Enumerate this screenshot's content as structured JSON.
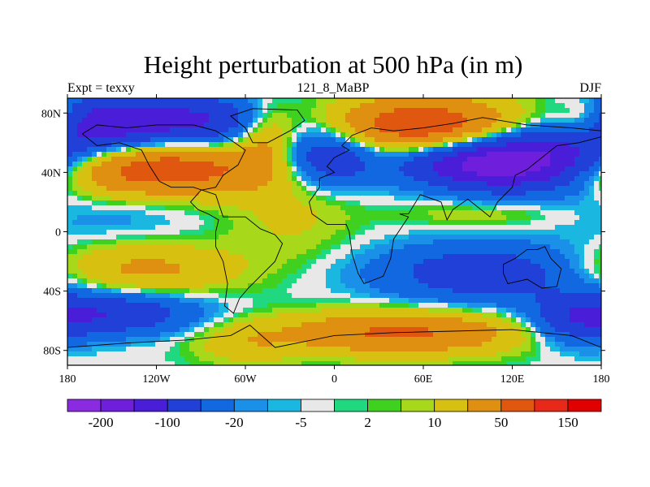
{
  "chart_data": {
    "type": "heatmap",
    "title": "Height perturbation at 500 hPa (in m)",
    "left_label": "Expt = texxy",
    "center_label": "121_8_MaBP",
    "right_label": "DJF",
    "x_ticks": [
      {
        "value": -180,
        "label": "180"
      },
      {
        "value": -120,
        "label": "120W"
      },
      {
        "value": -60,
        "label": "60W"
      },
      {
        "value": 0,
        "label": "0"
      },
      {
        "value": 60,
        "label": "60E"
      },
      {
        "value": 120,
        "label": "120E"
      },
      {
        "value": 180,
        "label": "180"
      }
    ],
    "y_ticks": [
      {
        "value": 80,
        "label": "80N"
      },
      {
        "value": 40,
        "label": "40N"
      },
      {
        "value": 0,
        "label": "0"
      },
      {
        "value": -40,
        "label": "40S"
      },
      {
        "value": -80,
        "label": "80S"
      }
    ],
    "xlim": [
      -180,
      180
    ],
    "ylim": [
      -90,
      90
    ],
    "colorbar": {
      "colors": [
        "#8a2be2",
        "#6f1fdc",
        "#4a1ed8",
        "#2040d8",
        "#1268e0",
        "#1a90e8",
        "#1ab8e0",
        "#e8e8e8",
        "#20d880",
        "#40d020",
        "#a8d81a",
        "#d8c010",
        "#e09010",
        "#e05810",
        "#e82818",
        "#e00000"
      ],
      "labels": [
        {
          "boundary": 1,
          "text": "-200"
        },
        {
          "boundary": 3,
          "text": "-100"
        },
        {
          "boundary": 5,
          "text": "-20"
        },
        {
          "boundary": 7,
          "text": "-5"
        },
        {
          "boundary": 9,
          "text": "2"
        },
        {
          "boundary": 11,
          "text": "10"
        },
        {
          "boundary": 13,
          "text": "50"
        },
        {
          "boundary": 15,
          "text": "150"
        }
      ]
    },
    "field_levels": [
      -250,
      -200,
      -150,
      -100,
      -50,
      -20,
      -10,
      -5,
      2,
      5,
      10,
      20,
      50,
      100,
      150,
      200
    ],
    "field_anomalies": [
      {
        "lon": -110,
        "lat": 75,
        "amp": -120,
        "sx": 50,
        "sy": 12
      },
      {
        "lon": -165,
        "lat": 70,
        "amp": -70,
        "sx": 25,
        "sy": 14
      },
      {
        "lon": -120,
        "lat": 42,
        "amp": 140,
        "sx": 55,
        "sy": 12
      },
      {
        "lon": -45,
        "lat": 65,
        "amp": 70,
        "sx": 15,
        "sy": 16
      },
      {
        "lon": -5,
        "lat": 50,
        "amp": -100,
        "sx": 25,
        "sy": 14
      },
      {
        "lon": 60,
        "lat": 72,
        "amp": 150,
        "sx": 45,
        "sy": 13
      },
      {
        "lon": 130,
        "lat": 48,
        "amp": -190,
        "sx": 40,
        "sy": 14
      },
      {
        "lon": 80,
        "lat": 45,
        "amp": -70,
        "sx": 30,
        "sy": 10
      },
      {
        "lon": 170,
        "lat": 75,
        "amp": 60,
        "sx": 15,
        "sy": 10
      },
      {
        "lon": -30,
        "lat": 12,
        "amp": 25,
        "sx": 30,
        "sy": 20
      },
      {
        "lon": 100,
        "lat": 12,
        "amp": 20,
        "sx": 40,
        "sy": 6
      },
      {
        "lon": -150,
        "lat": 10,
        "amp": -15,
        "sx": 40,
        "sy": 12
      },
      {
        "lon": 100,
        "lat": -28,
        "amp": -80,
        "sx": 50,
        "sy": 14
      },
      {
        "lon": -130,
        "lat": -25,
        "amp": 60,
        "sx": 45,
        "sy": 12
      },
      {
        "lon": -150,
        "lat": -55,
        "amp": -90,
        "sx": 40,
        "sy": 10
      },
      {
        "lon": 45,
        "lat": -68,
        "amp": 110,
        "sx": 55,
        "sy": 10
      },
      {
        "lon": 165,
        "lat": -60,
        "amp": -70,
        "sx": 22,
        "sy": 12
      },
      {
        "lon": -60,
        "lat": -75,
        "amp": 35,
        "sx": 25,
        "sy": 10
      }
    ],
    "coastlines": [
      [
        [
          -170,
          66
        ],
        [
          -160,
          72
        ],
        [
          -140,
          70
        ],
        [
          -120,
          72
        ],
        [
          -95,
          72
        ],
        [
          -80,
          68
        ],
        [
          -70,
          62
        ],
        [
          -60,
          55
        ],
        [
          -65,
          45
        ],
        [
          -75,
          38
        ],
        [
          -80,
          30
        ],
        [
          -90,
          28
        ],
        [
          -97,
          20
        ],
        [
          -92,
          15
        ],
        [
          -85,
          12
        ],
        [
          -78,
          8
        ],
        [
          -80,
          0
        ],
        [
          -80,
          -10
        ],
        [
          -75,
          -20
        ],
        [
          -72,
          -35
        ],
        [
          -74,
          -50
        ],
        [
          -68,
          -55
        ],
        [
          -64,
          -45
        ],
        [
          -58,
          -38
        ],
        [
          -48,
          -28
        ],
        [
          -40,
          -20
        ],
        [
          -35,
          -8
        ],
        [
          -40,
          -2
        ],
        [
          -50,
          2
        ],
        [
          -60,
          10
        ],
        [
          -75,
          10
        ],
        [
          -80,
          25
        ],
        [
          -95,
          30
        ],
        [
          -110,
          30
        ],
        [
          -118,
          34
        ],
        [
          -125,
          45
        ],
        [
          -130,
          55
        ],
        [
          -145,
          60
        ],
        [
          -160,
          58
        ],
        [
          -165,
          62
        ],
        [
          -170,
          66
        ]
      ],
      [
        [
          -55,
          60
        ],
        [
          -45,
          60
        ],
        [
          -30,
          68
        ],
        [
          -20,
          75
        ],
        [
          -25,
          82
        ],
        [
          -55,
          83
        ],
        [
          -70,
          78
        ],
        [
          -60,
          70
        ],
        [
          -55,
          60
        ]
      ],
      [
        [
          -10,
          36
        ],
        [
          0,
          40
        ],
        [
          -5,
          44
        ],
        [
          0,
          50
        ],
        [
          10,
          55
        ],
        [
          5,
          58
        ],
        [
          12,
          65
        ],
        [
          25,
          70
        ],
        [
          40,
          68
        ],
        [
          60,
          70
        ],
        [
          80,
          73
        ],
        [
          100,
          77
        ],
        [
          130,
          72
        ],
        [
          160,
          70
        ],
        [
          180,
          68
        ],
        [
          180,
          64
        ],
        [
          165,
          60
        ],
        [
          150,
          58
        ],
        [
          140,
          50
        ],
        [
          130,
          42
        ],
        [
          122,
          38
        ],
        [
          120,
          30
        ],
        [
          110,
          20
        ],
        [
          105,
          10
        ],
        [
          100,
          14
        ],
        [
          90,
          22
        ],
        [
          80,
          15
        ],
        [
          76,
          8
        ],
        [
          72,
          20
        ],
        [
          58,
          25
        ],
        [
          50,
          12
        ],
        [
          44,
          12
        ],
        [
          50,
          10
        ],
        [
          40,
          -5
        ],
        [
          38,
          -18
        ],
        [
          33,
          -30
        ],
        [
          20,
          -35
        ],
        [
          16,
          -28
        ],
        [
          12,
          -15
        ],
        [
          10,
          0
        ],
        [
          8,
          5
        ],
        [
          -5,
          5
        ],
        [
          -15,
          12
        ],
        [
          -17,
          20
        ],
        [
          -10,
          30
        ],
        [
          -10,
          36
        ]
      ],
      [
        [
          114,
          -22
        ],
        [
          122,
          -18
        ],
        [
          130,
          -12
        ],
        [
          137,
          -12
        ],
        [
          142,
          -10
        ],
        [
          146,
          -18
        ],
        [
          153,
          -25
        ],
        [
          150,
          -37
        ],
        [
          140,
          -38
        ],
        [
          130,
          -32
        ],
        [
          117,
          -35
        ],
        [
          114,
          -28
        ],
        [
          114,
          -22
        ]
      ],
      [
        [
          -180,
          -78
        ],
        [
          -140,
          -75
        ],
        [
          -100,
          -73
        ],
        [
          -70,
          -70
        ],
        [
          -57,
          -63
        ],
        [
          -40,
          -78
        ],
        [
          0,
          -70
        ],
        [
          40,
          -68
        ],
        [
          80,
          -67
        ],
        [
          120,
          -66
        ],
        [
          160,
          -70
        ],
        [
          180,
          -78
        ]
      ]
    ]
  }
}
